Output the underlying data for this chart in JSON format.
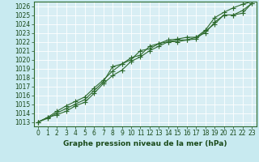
{
  "x": [
    0,
    1,
    2,
    3,
    4,
    5,
    6,
    7,
    8,
    9,
    10,
    11,
    12,
    13,
    14,
    15,
    16,
    17,
    18,
    19,
    20,
    21,
    22,
    23
  ],
  "line1": [
    1013.0,
    1013.4,
    1014.0,
    1014.5,
    1015.0,
    1015.5,
    1016.5,
    1017.5,
    1019.2,
    1019.5,
    1020.2,
    1020.5,
    1021.5,
    1021.8,
    1022.0,
    1022.2,
    1022.2,
    1022.5,
    1023.0,
    1024.2,
    1025.0,
    1025.0,
    1025.2,
    1026.3
  ],
  "line2": [
    1013.0,
    1013.5,
    1013.8,
    1014.2,
    1014.8,
    1015.2,
    1016.2,
    1017.3,
    1018.2,
    1018.8,
    1019.8,
    1020.3,
    1021.0,
    1021.5,
    1022.0,
    1022.0,
    1022.2,
    1022.3,
    1023.2,
    1024.0,
    1025.0,
    1025.0,
    1025.5,
    1026.3
  ],
  "line3": [
    1013.0,
    1013.5,
    1014.2,
    1014.8,
    1015.3,
    1015.8,
    1016.8,
    1017.7,
    1018.7,
    1019.5,
    1020.0,
    1021.0,
    1021.2,
    1021.8,
    1022.2,
    1022.3,
    1022.5,
    1022.5,
    1023.3,
    1024.7,
    1025.3,
    1025.8,
    1026.2,
    1026.5
  ],
  "ylim_min": 1012.5,
  "ylim_max": 1026.5,
  "xlim_min": -0.5,
  "xlim_max": 23.5,
  "yticks": [
    1013,
    1014,
    1015,
    1016,
    1017,
    1018,
    1019,
    1020,
    1021,
    1022,
    1023,
    1024,
    1025,
    1026
  ],
  "xticks": [
    0,
    1,
    2,
    3,
    4,
    5,
    6,
    7,
    8,
    9,
    10,
    11,
    12,
    13,
    14,
    15,
    16,
    17,
    18,
    19,
    20,
    21,
    22,
    23
  ],
  "line_color": "#2d6a2d",
  "bg_color": "#c8eaf0",
  "grid_color": "#b0d8e0",
  "plot_bg": "#d8eef4",
  "xlabel": "Graphe pression niveau de la mer (hPa)",
  "xlabel_color": "#1a4a1a",
  "tick_label_color": "#1a4a1a",
  "marker_size": 2.5,
  "linewidth": 0.8,
  "tick_fontsize": 5.5,
  "xlabel_fontsize": 6.5
}
